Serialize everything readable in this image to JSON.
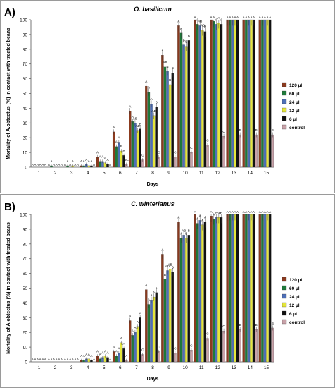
{
  "figure": {
    "xlabel": "Days",
    "ylabel": "Mortality of A.obtectus (%) in contact with treated beans",
    "legend": [
      {
        "name": "120 µl",
        "color": "#8B3A1E"
      },
      {
        "name": "60 µl",
        "color": "#1E7A3A"
      },
      {
        "name": "24 µl",
        "color": "#4D6FB8"
      },
      {
        "name": "12 µl",
        "color": "#E4E63A"
      },
      {
        "name": "6 µl",
        "color": "#111111"
      },
      {
        "name": "control",
        "color": "#C9A2A9"
      }
    ]
  },
  "chart_data": [
    {
      "type": "bar",
      "panel_label": "A)",
      "title": "O. basilicum",
      "xlabel": "Days",
      "ylabel": "Mortality of A.obtectus (%) in contact with treated beans",
      "ylim": [
        0,
        100
      ],
      "yticks": [
        0,
        10,
        20,
        30,
        40,
        50,
        60,
        70,
        80,
        90,
        100
      ],
      "categories": [
        "1",
        "2",
        "3",
        "4",
        "5",
        "6",
        "7",
        "8",
        "9",
        "10",
        "11",
        "12",
        "13",
        "14",
        "15"
      ],
      "legend_position": "right",
      "series": [
        {
          "name": "120 µl",
          "values": [
            0,
            0,
            0,
            1,
            7,
            24,
            38,
            55,
            76,
            96,
            100,
            100,
            100,
            100,
            100
          ]
        },
        {
          "name": "60 µl",
          "values": [
            0,
            1,
            1,
            1,
            4,
            14,
            31,
            51,
            68,
            91,
            97,
            99,
            100,
            100,
            100
          ]
        },
        {
          "name": "24 µl",
          "values": [
            0,
            0,
            0,
            2,
            4,
            17,
            30,
            43,
            65,
            83,
            96,
            97,
            100,
            100,
            100
          ]
        },
        {
          "name": "12 µl",
          "values": [
            0,
            0,
            1,
            1,
            3,
            11,
            25,
            35,
            56,
            82,
            93,
            98,
            100,
            100,
            100
          ]
        },
        {
          "name": "6 µl",
          "values": [
            0,
            0,
            0,
            1,
            2,
            8,
            26,
            41,
            64,
            86,
            92,
            97,
            100,
            100,
            100
          ]
        },
        {
          "name": "control",
          "values": [
            0,
            0,
            0,
            0,
            0,
            2,
            5,
            7,
            7,
            10,
            15,
            21,
            22,
            22,
            22
          ]
        }
      ],
      "letters": [
        [
          "A",
          "A",
          "A",
          "A",
          "A",
          "A"
        ],
        [
          "A",
          "A",
          "A",
          "A",
          "A",
          "A"
        ],
        [
          "A",
          "A",
          "A",
          "A",
          "A",
          "A"
        ],
        [
          "A",
          "A",
          "A",
          "A",
          "A",
          "A"
        ],
        [
          "A",
          "A",
          "A",
          "A",
          "A",
          "A"
        ],
        [
          "A",
          "A",
          "A",
          "B",
          "B",
          "BC"
        ],
        [
          "A",
          "A",
          "AB",
          "AB",
          "B",
          "C"
        ],
        [
          "A",
          "A",
          "A",
          "AB",
          "B",
          "C"
        ],
        [
          "A",
          "AB",
          "B",
          "B",
          "B",
          "C"
        ],
        [
          "A",
          "A",
          "B",
          "B",
          "B",
          "C"
        ],
        [
          "A",
          "A",
          "AB",
          "AB",
          "B",
          "C"
        ],
        [
          "A",
          "A",
          "A",
          "A",
          "A",
          "C"
        ],
        [
          "A",
          "A",
          "A",
          "A",
          "A",
          "B"
        ],
        [
          "A",
          "A",
          "A",
          "A",
          "A",
          "B"
        ],
        [
          "A",
          "A",
          "A",
          "A",
          "A",
          "B"
        ]
      ]
    },
    {
      "type": "bar",
      "panel_label": "B)",
      "title": "C. winterianus",
      "xlabel": "Days",
      "ylabel": "Mortality of A.obtectus (%) in contact with treated beans",
      "ylim": [
        0,
        100
      ],
      "yticks": [
        0,
        10,
        20,
        30,
        40,
        50,
        60,
        70,
        80,
        90,
        100
      ],
      "categories": [
        "1",
        "2",
        "3",
        "4",
        "5",
        "6",
        "7",
        "8",
        "9",
        "10",
        "11",
        "12",
        "13",
        "14",
        "15"
      ],
      "legend_position": "right",
      "series": [
        {
          "name": "120 µl",
          "values": [
            0,
            0,
            0,
            1,
            4,
            7,
            28,
            49,
            73,
            95,
            100,
            99,
            100,
            100,
            100
          ]
        },
        {
          "name": "60 µl",
          "values": [
            0,
            0,
            0,
            1,
            2,
            4,
            18,
            39,
            56,
            84,
            94,
            97,
            100,
            100,
            100
          ]
        },
        {
          "name": "24 µl",
          "values": [
            0,
            0,
            0,
            2,
            3,
            6,
            20,
            42,
            62,
            86,
            96,
            98,
            100,
            100,
            100
          ]
        },
        {
          "name": "12 µl",
          "values": [
            0,
            0,
            0,
            2,
            4,
            13,
            24,
            44,
            63,
            84,
            93,
            98,
            100,
            100,
            100
          ]
        },
        {
          "name": "6 µl",
          "values": [
            0,
            0,
            0,
            1,
            3,
            9,
            30,
            47,
            61,
            86,
            95,
            98,
            100,
            100,
            100
          ]
        },
        {
          "name": "control",
          "values": [
            0,
            0,
            0,
            0,
            0,
            1,
            5,
            7,
            6,
            8,
            16,
            21,
            22,
            22,
            23
          ]
        }
      ],
      "letters": [
        [
          "A",
          "A",
          "A",
          "A",
          "A",
          "A"
        ],
        [
          "A",
          "A",
          "A",
          "A",
          "A",
          "A"
        ],
        [
          "A",
          "A",
          "A",
          "A",
          "A",
          "A"
        ],
        [
          "A",
          "A",
          "A",
          "A",
          "A",
          "A"
        ],
        [
          "A",
          "A",
          "A",
          "A",
          "A",
          "A"
        ],
        [
          "A",
          "A",
          "A",
          "A",
          "A",
          "A"
        ],
        [
          "A",
          "A",
          "A",
          "A",
          "A",
          "C"
        ],
        [
          "A",
          "A",
          "A",
          "A",
          "A",
          "C"
        ],
        [
          "A",
          "B",
          "AB",
          "AB",
          "B",
          "C"
        ],
        [
          "A",
          "A",
          "AB",
          "B",
          "B",
          "C"
        ],
        [
          "A",
          "A",
          "A",
          "A",
          "A",
          "C"
        ],
        [
          "A",
          "A",
          "A",
          "AB",
          "A",
          "C"
        ],
        [
          "A",
          "A",
          "A",
          "A",
          "A",
          "B"
        ],
        [
          "A",
          "A",
          "A",
          "A",
          "A",
          "B"
        ],
        [
          "A",
          "A",
          "A",
          "A",
          "A",
          "B"
        ]
      ]
    }
  ]
}
